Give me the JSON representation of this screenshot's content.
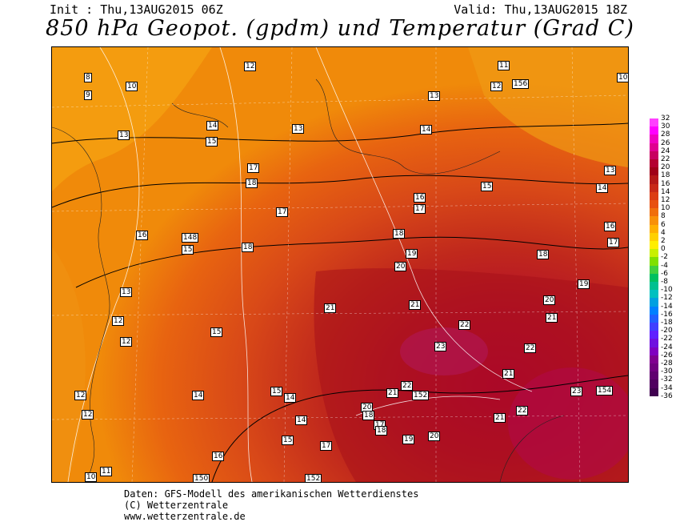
{
  "header": {
    "init": "Init : Thu,13AUG2015 06Z",
    "valid": "Valid: Thu,13AUG2015 18Z",
    "title": "850 hPa Geopot. (gpdm) und Temperatur (Grad C)"
  },
  "map": {
    "labels": [
      {
        "t": "12"
      },
      {
        "t": "11"
      },
      {
        "t": "12"
      },
      {
        "t": "156"
      },
      {
        "t": "10"
      },
      {
        "t": "8"
      },
      {
        "t": "10"
      },
      {
        "t": "9"
      },
      {
        "t": "13"
      },
      {
        "t": "14"
      },
      {
        "t": "13"
      },
      {
        "t": "13"
      },
      {
        "t": "14"
      },
      {
        "t": "15"
      },
      {
        "t": "17"
      },
      {
        "t": "18"
      },
      {
        "t": "13"
      },
      {
        "t": "14"
      },
      {
        "t": "15"
      },
      {
        "t": "16"
      },
      {
        "t": "17"
      },
      {
        "t": "17"
      },
      {
        "t": "16"
      },
      {
        "t": "17"
      },
      {
        "t": "16"
      },
      {
        "t": "148"
      },
      {
        "t": "15"
      },
      {
        "t": "18"
      },
      {
        "t": "18"
      },
      {
        "t": "19"
      },
      {
        "t": "18"
      },
      {
        "t": "20"
      },
      {
        "t": "19"
      },
      {
        "t": "13"
      },
      {
        "t": "21"
      },
      {
        "t": "21"
      },
      {
        "t": "20"
      },
      {
        "t": "12"
      },
      {
        "t": "22"
      },
      {
        "t": "21"
      },
      {
        "t": "12"
      },
      {
        "t": "15"
      },
      {
        "t": "23"
      },
      {
        "t": "22"
      },
      {
        "t": "21"
      },
      {
        "t": "12"
      },
      {
        "t": "14"
      },
      {
        "t": "15"
      },
      {
        "t": "14"
      },
      {
        "t": "22"
      },
      {
        "t": "21"
      },
      {
        "t": "152"
      },
      {
        "t": "23"
      },
      {
        "t": "154"
      },
      {
        "t": "12"
      },
      {
        "t": "20"
      },
      {
        "t": "18"
      },
      {
        "t": "14"
      },
      {
        "t": "22"
      },
      {
        "t": "21"
      },
      {
        "t": "17"
      },
      {
        "t": "18"
      },
      {
        "t": "19"
      },
      {
        "t": "20"
      },
      {
        "t": "15"
      },
      {
        "t": "17"
      },
      {
        "t": "16"
      },
      {
        "t": "11"
      },
      {
        "t": "10"
      },
      {
        "t": "150"
      },
      {
        "t": "152"
      }
    ]
  },
  "color_scale": {
    "ticks": [
      "32",
      "30",
      "28",
      "26",
      "24",
      "22",
      "20",
      "18",
      "16",
      "14",
      "12",
      "10",
      "8",
      "6",
      "4",
      "2",
      "0",
      "-2",
      "-4",
      "-6",
      "-8",
      "-10",
      "-12",
      "-14",
      "-16",
      "-18",
      "-20",
      "-22",
      "-24",
      "-26",
      "-28",
      "-30",
      "-32",
      "-34",
      "-36"
    ],
    "colors": [
      "#ff40ff",
      "#ff00ff",
      "#f000c0",
      "#e00090",
      "#c80060",
      "#b40030",
      "#a00018",
      "#b41818",
      "#c82818",
      "#dc3c14",
      "#e85010",
      "#f06e0c",
      "#f89008",
      "#ffb000",
      "#ffd000",
      "#ffee00",
      "#c8f000",
      "#80e000",
      "#40d040",
      "#00c060",
      "#00c090",
      "#00c0c0",
      "#00a0e0",
      "#0080ff",
      "#2060ff",
      "#4040ff",
      "#6020ff",
      "#7010e0",
      "#8000c0",
      "#800090",
      "#700080",
      "#600070",
      "#500060",
      "#400050"
    ]
  },
  "footer": {
    "line1": "Daten: GFS-Modell des amerikanischen Wetterdienstes",
    "line2": "(C) Wetterzentrale",
    "line3": "www.wetterzentrale.de"
  }
}
